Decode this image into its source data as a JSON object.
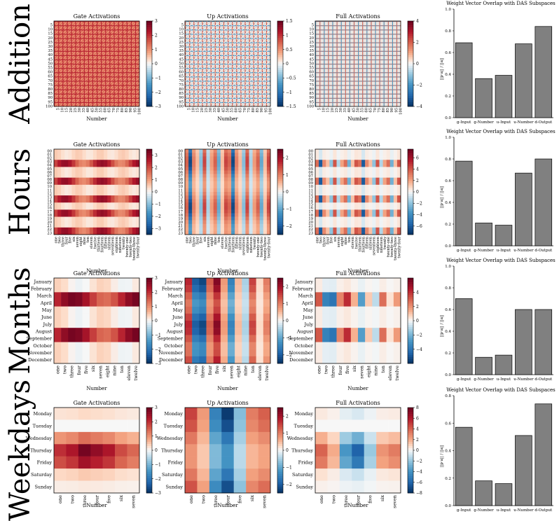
{
  "figure": {
    "panel_titles": [
      "Gate Activations",
      "Up Activations",
      "Full Activations"
    ],
    "xlabel": "Number",
    "bar_title": "Weight Vector Overlap with DAS Subspaces",
    "bar_ylabel": "||p·a|| / ||a||",
    "colors": {
      "neg": "#053061",
      "mid": "#f7f7f7",
      "pos": "#67001f",
      "bar": "#808080"
    }
  },
  "chart_data": [
    {
      "type": "heatmap",
      "row_title": "Addition",
      "n": 100,
      "tick_step": 5,
      "cbars": [
        [
          -3,
          3
        ],
        [
          -1.5,
          1.5
        ],
        [
          -4,
          4
        ]
      ],
      "cbar_ticks": [
        [
          -3,
          -2,
          -1,
          0,
          1,
          2,
          3
        ],
        [
          -1.5,
          -1.0,
          -0.5,
          0.0,
          0.5,
          1.0,
          1.5
        ],
        [
          -4,
          -2,
          0,
          2,
          4
        ]
      ],
      "bar": {
        "categories": [
          "g-Input",
          "g-Number",
          "u-Input",
          "u-Number",
          "d-Output"
        ],
        "values": [
          0.69,
          0.36,
          0.39,
          0.68,
          0.84
        ],
        "ylim": [
          0,
          1.0
        ],
        "yticks": [
          "0.0",
          "0.2",
          "0.4",
          "0.6",
          "0.8",
          "1.0"
        ]
      }
    },
    {
      "type": "heatmap",
      "row_title": "Hours",
      "ylabels": [
        "00",
        "01",
        "02",
        "03",
        "04",
        "05",
        "06",
        "07",
        "08",
        "09",
        "10",
        "11",
        "12",
        "13",
        "14",
        "15",
        "16",
        "17",
        "18",
        "19",
        "20",
        "21",
        "22",
        "23"
      ],
      "xlabels": [
        "one",
        "two",
        "three",
        "four",
        "five",
        "six",
        "seven",
        "eight",
        "nine",
        "ten",
        "eleven",
        "twelve",
        "thirteen",
        "fourteen",
        "fifteen",
        "sixteen",
        "seventeen",
        "eighteen",
        "nineteen",
        "twenty",
        "twenty-one",
        "twenty-two",
        "twenty-three",
        "twenty-four"
      ],
      "cbars": [
        [
          -3.5,
          3.5
        ],
        [
          -2.5,
          2.5
        ],
        [
          -7.5,
          7.5
        ]
      ],
      "cbar_ticks": [
        [
          -3,
          -2,
          -1,
          0,
          1,
          2,
          3
        ],
        [
          -2,
          -1,
          0,
          1,
          2
        ],
        [
          -6,
          -4,
          -2,
          0,
          2,
          4,
          6
        ]
      ],
      "bar": {
        "categories": [
          "g-Input",
          "g-Number",
          "u-Input",
          "u-Number",
          "d-Output"
        ],
        "values": [
          0.78,
          0.21,
          0.19,
          0.67,
          0.8
        ],
        "ylim": [
          0,
          1.0
        ],
        "yticks": [
          "0.0",
          "0.2",
          "0.4",
          "0.6",
          "0.8",
          "1.0"
        ]
      }
    },
    {
      "type": "heatmap",
      "row_title": "Months",
      "ylabels": [
        "January",
        "February",
        "March",
        "April",
        "May",
        "June",
        "July",
        "August",
        "September",
        "October",
        "November",
        "December"
      ],
      "xlabels": [
        "one",
        "two",
        "three",
        "four",
        "five",
        "six",
        "seven",
        "eight",
        "nine",
        "ten",
        "eleven",
        "twelve"
      ],
      "cbars": [
        [
          -3,
          3
        ],
        [
          -2.5,
          2.5
        ],
        [
          -6,
          6
        ]
      ],
      "cbar_ticks": [
        [
          -3,
          -2,
          -1,
          0,
          1,
          2,
          3
        ],
        [
          -2,
          -1,
          0,
          1,
          2
        ],
        [
          -4,
          -2,
          0,
          2,
          4
        ]
      ],
      "bar": {
        "categories": [
          "g-Input",
          "g-Number",
          "u-Input",
          "u-Number",
          "d-Output"
        ],
        "values": [
          0.7,
          0.16,
          0.18,
          0.6,
          0.6
        ],
        "ylim": [
          0,
          1.0
        ],
        "yticks": [
          "0.0",
          "0.2",
          "0.4",
          "0.6",
          "0.8",
          "1.0"
        ]
      }
    },
    {
      "type": "heatmap",
      "row_title": "Weekdays",
      "ylabels": [
        "Monday",
        "Tuesday",
        "Wednesday",
        "Thursday",
        "Friday",
        "Saturday",
        "Sunday"
      ],
      "xlabels": [
        "one",
        "two",
        "three",
        "four",
        "five",
        "six",
        "seven"
      ],
      "cbars": [
        [
          -3,
          3
        ],
        [
          -2.5,
          2.5
        ],
        [
          -8,
          8
        ]
      ],
      "cbar_ticks": [
        [
          -3,
          -2,
          -1,
          0,
          1,
          2,
          3
        ],
        [
          -2,
          -1,
          0,
          1,
          2
        ],
        [
          -8,
          -6,
          -4,
          -2,
          0,
          2,
          4,
          6,
          8
        ]
      ],
      "bar": {
        "categories": [
          "g-Input",
          "g-Number",
          "u-Input",
          "u-Number",
          "d-Output"
        ],
        "values": [
          0.57,
          0.18,
          0.16,
          0.51,
          0.74
        ],
        "ylim": [
          0,
          0.8
        ],
        "yticks": [
          "0.0",
          "0.2",
          "0.4",
          "0.6",
          "0.8"
        ]
      }
    }
  ]
}
